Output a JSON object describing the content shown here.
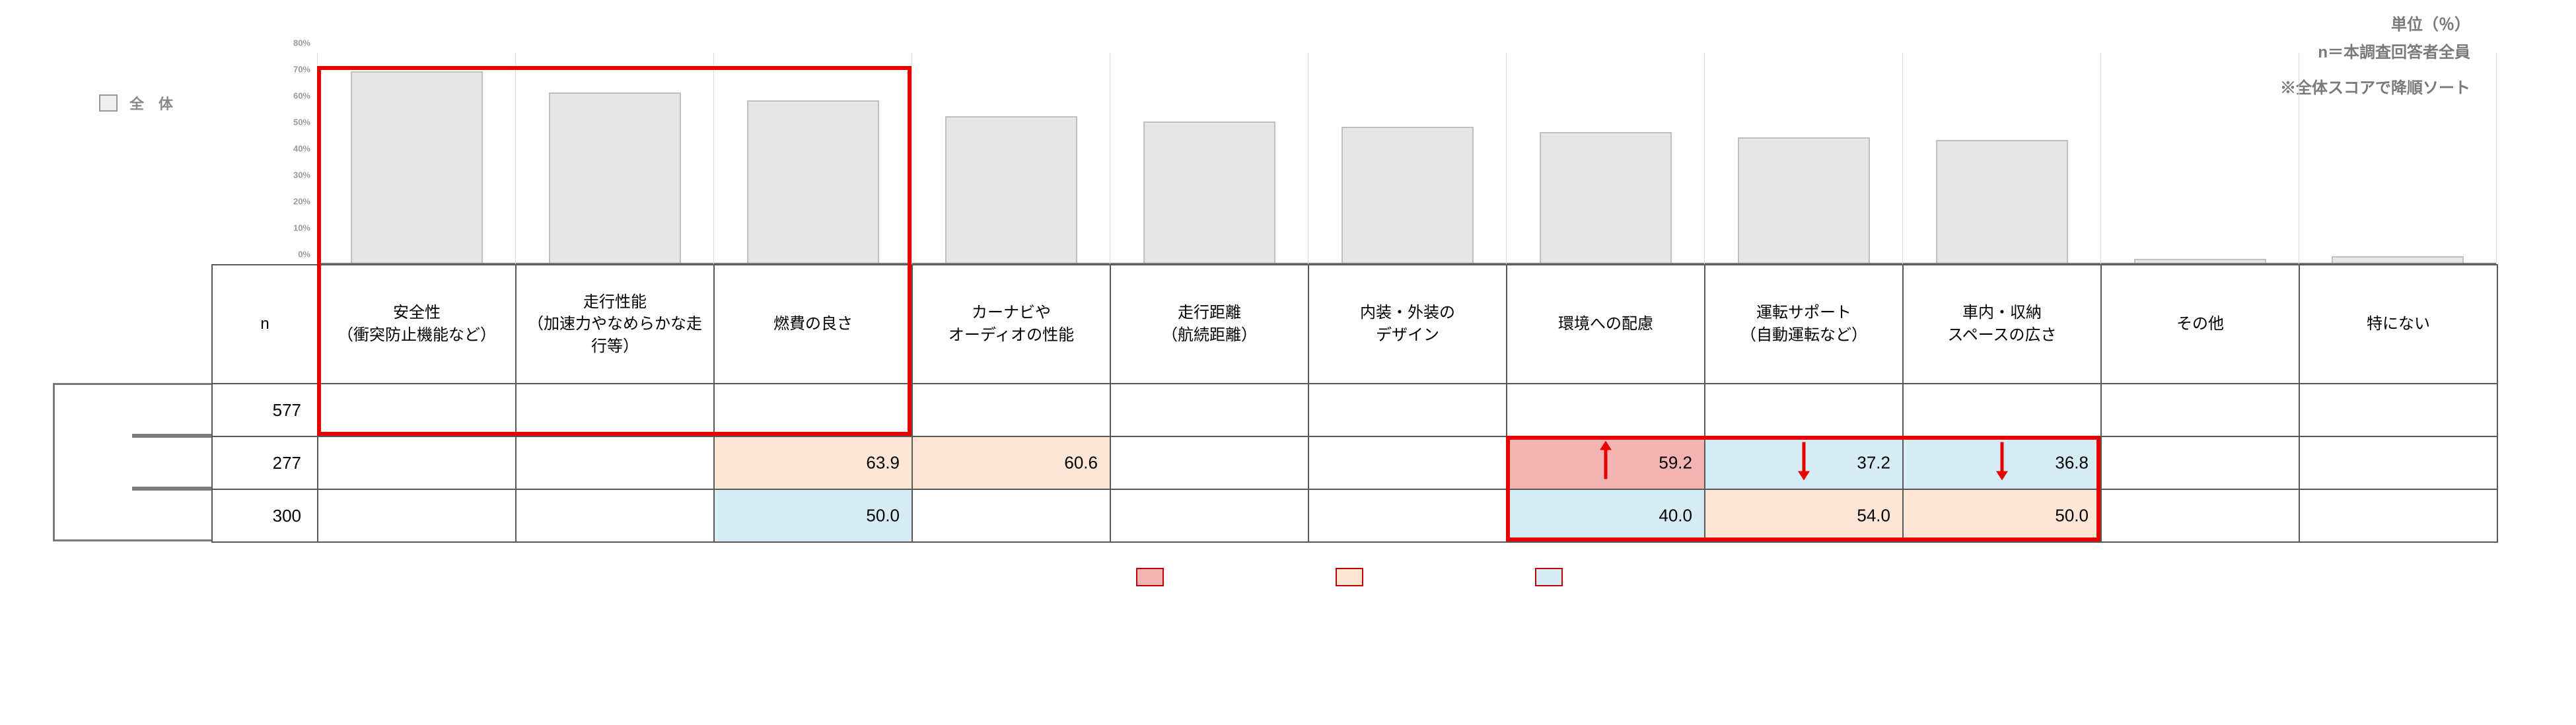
{
  "annotations": {
    "unit": "単位（％）",
    "n_note": "n＝本調査回答者全員",
    "sort_note": "※全体スコアで降順ソート"
  },
  "series_legend": {
    "label": "全　体",
    "swatch_fill": "#eeeeee",
    "swatch_border": "#999999"
  },
  "chart": {
    "type": "bar",
    "ymax": 80,
    "ytick_step": 10,
    "ytick_suffix": "%",
    "bar_fill": "#e6e6e6",
    "bar_border": "#bfbfbf",
    "categories": [
      {
        "label": "安全性\n（衝突防止機能など）",
        "value": 73
      },
      {
        "label": "走行性能\n（加速力やなめらかな走行等）",
        "value": 65
      },
      {
        "label": "燃費の良さ",
        "value": 62
      },
      {
        "label": "カーナビや\nオーディオの性能",
        "value": 56
      },
      {
        "label": "走行距離\n（航続距離）",
        "value": 54
      },
      {
        "label": "内装・外装の\nデザイン",
        "value": 52
      },
      {
        "label": "環境への配慮",
        "value": 50
      },
      {
        "label": "運転サポート\n（自動運転など）",
        "value": 48
      },
      {
        "label": "車内・収納\nスペースの広さ",
        "value": 47
      },
      {
        "label": "その他",
        "value": 2
      },
      {
        "label": "特にない",
        "value": 3
      }
    ]
  },
  "table": {
    "n_header": "n",
    "rows": [
      {
        "n": 577,
        "cells": [
          "",
          "",
          "",
          "",
          "",
          "",
          "",
          "",
          "",
          "",
          ""
        ]
      },
      {
        "n": 277,
        "cells": [
          "",
          "",
          {
            "v": "63.9",
            "bg": "#fde6d5"
          },
          {
            "v": "60.6",
            "bg": "#fde6d5"
          },
          "",
          "",
          {
            "v": "59.2",
            "bg": "#f4b4b4",
            "arrow": "up",
            "arrow_color": "#e60000"
          },
          {
            "v": "37.2",
            "bg": "#d6ecf4",
            "arrow": "down_from_above",
            "arrow_color": "#e60000"
          },
          {
            "v": "36.8",
            "bg": "#d6ecf4",
            "arrow": "down_from_above",
            "arrow_color": "#e60000"
          },
          "",
          ""
        ]
      },
      {
        "n": 300,
        "cells": [
          "",
          "",
          {
            "v": "50.0",
            "bg": "#d6ecf4"
          },
          "",
          "",
          "",
          {
            "v": "40.0",
            "bg": "#d6ecf4"
          },
          {
            "v": "54.0",
            "bg": "#fde6d5"
          },
          {
            "v": "50.0",
            "bg": "#fde6d5"
          },
          "",
          ""
        ]
      }
    ]
  },
  "highlights": {
    "box_color": "#e60000",
    "box1": {
      "col_start": 0,
      "col_end": 2,
      "from": "bars_top",
      "to_row": 0
    },
    "box2": {
      "col_start": 6,
      "col_end": 8,
      "from_row": 1,
      "to_row": 2
    }
  },
  "lower_legend": {
    "swatches": [
      {
        "fill": "#f4b4b4",
        "border": "#c00000"
      },
      {
        "fill": "#fde6d5",
        "border": "#c00000"
      },
      {
        "fill": "#d6ecf4",
        "border": "#c00000"
      }
    ]
  },
  "colors": {
    "grid": "#dcdcdc",
    "axis": "#7a7a7a",
    "text_muted": "#7a7a7a"
  }
}
